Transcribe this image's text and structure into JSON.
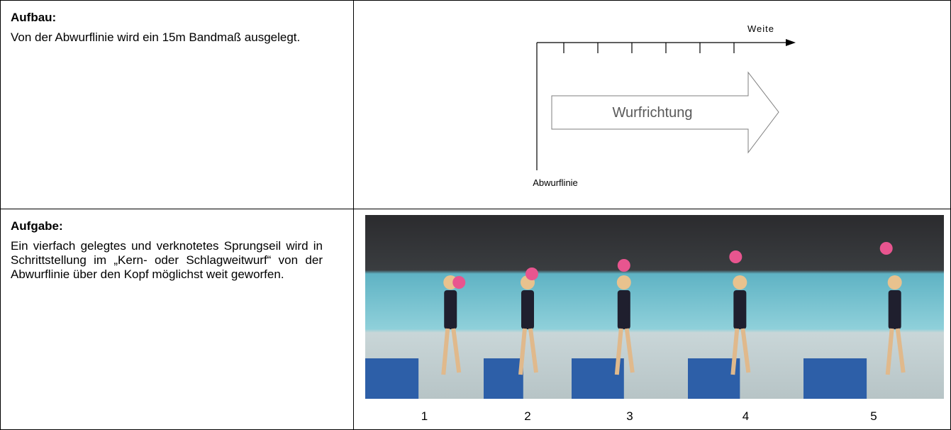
{
  "setup": {
    "title": "Aufbau:",
    "text": "Von der Abwurflinie wird ein 15m Bandmaß ausgelegt.",
    "diagram": {
      "distance_label": "Weite",
      "direction_label": "Wurfrichtung",
      "line_label": "Abwurflinie"
    }
  },
  "task": {
    "title": "Aufgabe:",
    "text": "Ein vierfach gelegtes und verknotetes Sprungseil wird in Schrittstellung im „Kern- oder Schlagweitwurf“ von der Abwurflinie über den Kopf möglichst weit geworfen.",
    "photos": [
      "1",
      "2",
      "3",
      "4",
      "5"
    ]
  }
}
